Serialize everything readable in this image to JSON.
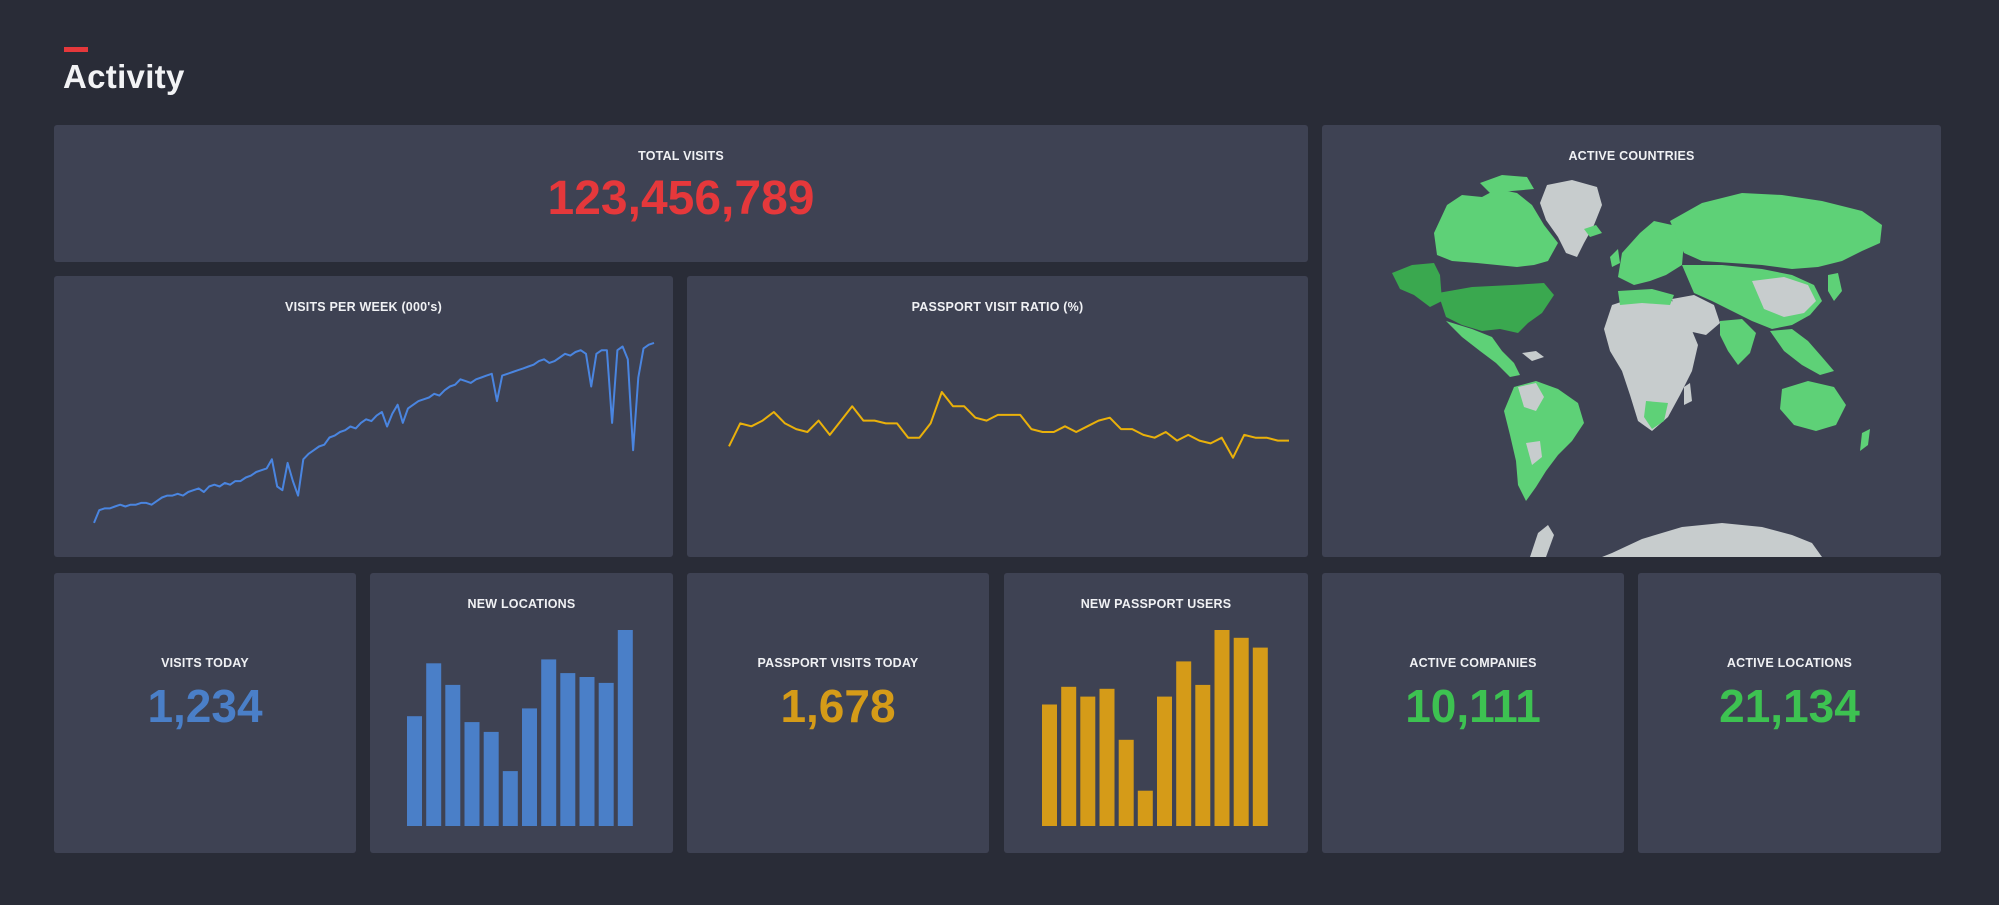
{
  "page": {
    "title": "Activity"
  },
  "colors": {
    "red": "#e5383b",
    "blue": "#4a85e0",
    "amber": "#eab10a",
    "bar_blue": "#4a7fc8",
    "bar_amber": "#d59b18",
    "green": "#3dc251"
  },
  "cards": {
    "total_visits": {
      "label": "TOTAL VISITS",
      "value": "123,456,789"
    },
    "visits_per_week": {
      "label": "VISITS PER WEEK (000's)"
    },
    "passport_ratio": {
      "label": "PASSPORT VISIT RATIO (%)"
    },
    "active_countries": {
      "label": "ACTIVE COUNTRIES"
    },
    "visits_today": {
      "label": "VISITS TODAY",
      "value": "1,234"
    },
    "new_locations": {
      "label": "NEW LOCATIONS"
    },
    "passport_visits_today": {
      "label": "PASSPORT VISITS TODAY",
      "value": "1,678"
    },
    "new_passport_users": {
      "label": "NEW PASSPORT USERS"
    },
    "active_companies": {
      "label": "ACTIVE COMPANIES",
      "value": "10,111"
    },
    "active_locations": {
      "label": "ACTIVE LOCATIONS",
      "value": "21,134"
    }
  },
  "map_icons": {
    "landmass": "world-map"
  },
  "chart_data": [
    {
      "id": "visits_per_week",
      "type": "line",
      "title": "VISITS PER WEEK (000's)",
      "series": [
        {
          "values": [
            5,
            12,
            13,
            13,
            14,
            15,
            14,
            15,
            15,
            16,
            16,
            15,
            17,
            19,
            20,
            20,
            21,
            20,
            22,
            23,
            24,
            22,
            25,
            26,
            25,
            27,
            26,
            28,
            28,
            30,
            31,
            33,
            34,
            35,
            40,
            25,
            23,
            38,
            28,
            20,
            40,
            43,
            45,
            47,
            48,
            52,
            53,
            55,
            56,
            58,
            57,
            60,
            62,
            61,
            64,
            66,
            58,
            65,
            70,
            60,
            68,
            70,
            72,
            73,
            74,
            76,
            75,
            78,
            80,
            81,
            84,
            83,
            82,
            84,
            85,
            86,
            87,
            72,
            86,
            87,
            88,
            89,
            90,
            91,
            92,
            94,
            95,
            93,
            94,
            96,
            98,
            97,
            99,
            100,
            98,
            80,
            98,
            100,
            100,
            60,
            100,
            102,
            95,
            45,
            85,
            101,
            103,
            104
          ]
        }
      ],
      "ylim": [
        0,
        110
      ]
    },
    {
      "id": "passport_ratio",
      "type": "line",
      "title": "PASSPORT VISIT RATIO (%)",
      "series": [
        {
          "values": [
            30,
            38,
            37,
            39,
            42,
            38,
            36,
            35,
            39,
            34,
            39,
            44,
            39,
            39,
            38,
            38,
            33,
            33,
            38,
            49,
            44,
            44,
            40,
            39,
            41,
            41,
            41,
            36,
            35,
            35,
            37,
            35,
            37,
            39,
            40,
            36,
            36,
            34,
            33,
            35,
            32,
            34,
            32,
            31,
            33,
            26,
            34,
            33,
            33,
            32,
            32
          ]
        }
      ],
      "ylim": [
        0,
        70
      ]
    },
    {
      "id": "new_locations",
      "type": "bar",
      "title": "NEW LOCATIONS",
      "values": [
        56,
        83,
        72,
        53,
        48,
        28,
        60,
        85,
        78,
        76,
        73,
        100
      ],
      "ylim": [
        0,
        100
      ]
    },
    {
      "id": "new_passport_users",
      "type": "bar",
      "title": "NEW PASSPORT USERS",
      "values": [
        62,
        71,
        66,
        70,
        44,
        18,
        66,
        84,
        72,
        100,
        96,
        91
      ],
      "ylim": [
        0,
        100
      ]
    }
  ]
}
